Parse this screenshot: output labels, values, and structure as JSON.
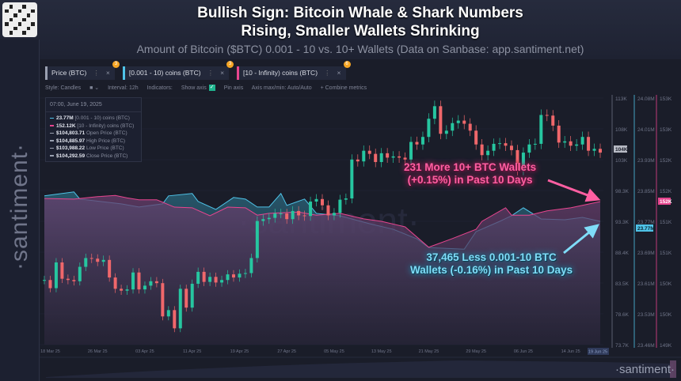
{
  "header": {
    "title_line1": "Bullish Sign: Bitcoin Whale & Shark Numbers",
    "title_line2": "Rising, Smaller Wallets Shrinking",
    "subtitle": "Amount of Bitcoin ($BTC) 0.001 - 10 vs. 10+ Wallets (Data on Sanbase: app.santiment.net)"
  },
  "brand": {
    "sidebar_logo": "·santiment·",
    "watermark": "·santiment·",
    "footer_logo": "·santiment·"
  },
  "tabs": [
    {
      "label": "Price (BTC)",
      "badge": "3",
      "color": "#9aa0b0"
    },
    {
      "label": "[0.001 - 10) coins (BTC)",
      "badge": "3",
      "color": "#4fc3e8"
    },
    {
      "label": "[10 - Infinity) coins (BTC)",
      "badge": "6",
      "color": "#e8458f"
    }
  ],
  "settings": {
    "style": "Style: Candles",
    "interval": "Interval: 12h",
    "indicators": "Indicators:",
    "show_axis": "Show axis",
    "pin_axis": "Pin axis",
    "axis_maxmin": "Axis max/min: Auto/Auto",
    "combine": "+ Combine metrics"
  },
  "legend": {
    "datetime": "07:00, June 19, 2025",
    "rows": [
      {
        "value": "23.77M",
        "label": "[0.001 - 10) coins (BTC)",
        "color": "#4fc3e8"
      },
      {
        "value": "152.12K",
        "label": "[10 - Infinity) coins (BTC)",
        "color": "#e8458f"
      },
      {
        "value": "$104,803.71",
        "label": "Open Price (BTC)",
        "color": "#9aa0b0"
      },
      {
        "value": "$104,885.97",
        "label": "High Price (BTC)",
        "color": "#9aa0b0"
      },
      {
        "value": "$103,988.22",
        "label": "Low Price (BTC)",
        "color": "#9aa0b0"
      },
      {
        "value": "$104,292.59",
        "label": "Close Price (BTC)",
        "color": "#9aa0b0"
      }
    ]
  },
  "annotations": {
    "pink_line1": "231 More 10+ BTC Wallets",
    "pink_line2": "(+0.15%) in Past 10 Days",
    "blue_line1": "37,465 Less 0.001-10 BTC",
    "blue_line2": "Wallets (-0.16%) in Past 10 Days"
  },
  "chart_data": {
    "type": "candlestick+area",
    "x_ticks": [
      "18 Mar 25",
      "26 Mar 25",
      "03 Apr 25",
      "11 Apr 25",
      "19 Apr 25",
      "27 Apr 25",
      "05 May 25",
      "13 May 25",
      "21 May 25",
      "29 May 25",
      "06 Jun 25",
      "14 Jun 25"
    ],
    "x_current_label": "19 Jun 25",
    "xlim": [
      "2025-03-17",
      "2025-06-19"
    ],
    "axes": [
      {
        "name": "Price (BTC)",
        "unit": "K USD",
        "ylim": [
          73.7,
          113
        ],
        "tick_labels": [
          "113K",
          "108K",
          "103K",
          "98.3K",
          "93.3K",
          "88.4K",
          "83.5K",
          "78.6K",
          "73.7K"
        ],
        "current": "104K",
        "color": "#b0b4c0"
      },
      {
        "name": "[0.001 - 10) coins (BTC)",
        "unit": "M BTC",
        "ylim": [
          23.46,
          24.08
        ],
        "tick_labels": [
          "24.08M",
          "24.01M",
          "23.93M",
          "23.85M",
          "23.77M",
          "23.69M",
          "23.61M",
          "23.53M",
          "23.46M"
        ],
        "current": "23.77M",
        "color": "#4fc3e8"
      },
      {
        "name": "[10 - Infinity) coins (BTC)",
        "unit": "K BTC",
        "ylim": [
          149.8,
          153.8
        ],
        "tick_labels": [
          "153K",
          "153K",
          "152K",
          "152K",
          "151K",
          "151K",
          "150K",
          "150K",
          "149K"
        ],
        "current": "152K",
        "color": "#e8458f"
      }
    ],
    "price_close": [
      [
        "2025-03-17",
        84.0
      ],
      [
        "2025-03-18",
        82.7
      ],
      [
        "2025-03-19",
        86.8
      ],
      [
        "2025-03-20",
        84.2
      ],
      [
        "2025-03-21",
        84.0
      ],
      [
        "2025-03-22",
        83.8
      ],
      [
        "2025-03-23",
        86.1
      ],
      [
        "2025-03-24",
        87.5
      ],
      [
        "2025-03-25",
        87.4
      ],
      [
        "2025-03-26",
        86.9
      ],
      [
        "2025-03-27",
        87.2
      ],
      [
        "2025-03-28",
        84.4
      ],
      [
        "2025-03-29",
        82.6
      ],
      [
        "2025-03-30",
        82.3
      ],
      [
        "2025-03-31",
        82.5
      ],
      [
        "2025-04-01",
        85.2
      ],
      [
        "2025-04-02",
        82.5
      ],
      [
        "2025-04-03",
        83.1
      ],
      [
        "2025-04-04",
        83.8
      ],
      [
        "2025-04-05",
        83.5
      ],
      [
        "2025-04-06",
        78.2
      ],
      [
        "2025-04-07",
        79.2
      ],
      [
        "2025-04-08",
        76.3
      ],
      [
        "2025-04-09",
        82.6
      ],
      [
        "2025-04-10",
        79.6
      ],
      [
        "2025-04-11",
        83.4
      ],
      [
        "2025-04-12",
        85.3
      ],
      [
        "2025-04-13",
        83.7
      ],
      [
        "2025-04-14",
        84.5
      ],
      [
        "2025-04-15",
        83.6
      ],
      [
        "2025-04-16",
        84.0
      ],
      [
        "2025-04-17",
        84.9
      ],
      [
        "2025-04-18",
        84.4
      ],
      [
        "2025-04-19",
        85.0
      ],
      [
        "2025-04-20",
        85.1
      ],
      [
        "2025-04-21",
        87.5
      ],
      [
        "2025-04-22",
        93.4
      ],
      [
        "2025-04-23",
        93.7
      ],
      [
        "2025-04-24",
        93.9
      ],
      [
        "2025-04-25",
        94.6
      ],
      [
        "2025-04-26",
        94.6
      ],
      [
        "2025-04-27",
        93.7
      ],
      [
        "2025-04-28",
        95.0
      ],
      [
        "2025-04-29",
        94.3
      ],
      [
        "2025-04-30",
        94.2
      ],
      [
        "2025-05-01",
        96.5
      ],
      [
        "2025-05-02",
        96.9
      ],
      [
        "2025-05-03",
        95.9
      ],
      [
        "2025-05-04",
        94.3
      ],
      [
        "2025-05-05",
        94.7
      ],
      [
        "2025-05-06",
        96.8
      ],
      [
        "2025-05-07",
        97.0
      ],
      [
        "2025-05-08",
        103.2
      ],
      [
        "2025-05-09",
        102.9
      ],
      [
        "2025-05-10",
        104.6
      ],
      [
        "2025-05-11",
        104.1
      ],
      [
        "2025-05-12",
        102.8
      ],
      [
        "2025-05-13",
        104.2
      ],
      [
        "2025-05-14",
        103.5
      ],
      [
        "2025-05-15",
        103.7
      ],
      [
        "2025-05-16",
        103.5
      ],
      [
        "2025-05-17",
        103.2
      ],
      [
        "2025-05-18",
        106.0
      ],
      [
        "2025-05-19",
        105.6
      ],
      [
        "2025-05-20",
        106.8
      ],
      [
        "2025-05-21",
        109.7
      ],
      [
        "2025-05-22",
        111.7
      ],
      [
        "2025-05-23",
        107.3
      ],
      [
        "2025-05-24",
        107.8
      ],
      [
        "2025-05-25",
        109.0
      ],
      [
        "2025-05-26",
        109.4
      ],
      [
        "2025-05-27",
        108.9
      ],
      [
        "2025-05-28",
        107.8
      ],
      [
        "2025-05-29",
        105.6
      ],
      [
        "2025-05-30",
        103.9
      ],
      [
        "2025-05-31",
        104.6
      ],
      [
        "2025-06-01",
        105.7
      ],
      [
        "2025-06-02",
        105.8
      ],
      [
        "2025-06-03",
        105.4
      ],
      [
        "2025-06-04",
        104.7
      ],
      [
        "2025-06-05",
        101.5
      ],
      [
        "2025-06-06",
        104.3
      ],
      [
        "2025-06-07",
        105.6
      ],
      [
        "2025-06-08",
        105.7
      ],
      [
        "2025-06-09",
        110.3
      ],
      [
        "2025-06-10",
        110.2
      ],
      [
        "2025-06-11",
        108.6
      ],
      [
        "2025-06-12",
        105.9
      ],
      [
        "2025-06-13",
        106.1
      ],
      [
        "2025-06-14",
        105.4
      ],
      [
        "2025-06-15",
        105.6
      ],
      [
        "2025-06-16",
        106.8
      ],
      [
        "2025-06-17",
        104.6
      ],
      [
        "2025-06-18",
        104.9
      ],
      [
        "2025-06-19",
        104.3
      ]
    ],
    "small_wallets": [
      [
        "2025-03-17",
        23.834
      ],
      [
        "2025-03-22",
        23.844
      ],
      [
        "2025-03-23",
        23.826
      ],
      [
        "2025-03-30",
        23.814
      ],
      [
        "2025-04-02",
        23.806
      ],
      [
        "2025-04-06",
        23.814
      ],
      [
        "2025-04-07",
        23.834
      ],
      [
        "2025-04-11",
        23.84
      ],
      [
        "2025-04-12",
        23.82
      ],
      [
        "2025-04-15",
        23.8
      ],
      [
        "2025-04-18",
        23.83
      ],
      [
        "2025-04-20",
        23.826
      ],
      [
        "2025-04-22",
        23.806
      ],
      [
        "2025-04-24",
        23.806
      ],
      [
        "2025-04-26",
        23.84
      ],
      [
        "2025-04-27",
        23.81
      ],
      [
        "2025-04-30",
        23.826
      ],
      [
        "2025-05-02",
        23.79
      ],
      [
        "2025-05-06",
        23.784
      ],
      [
        "2025-05-11",
        23.764
      ],
      [
        "2025-05-15",
        23.75
      ],
      [
        "2025-05-19",
        23.726
      ],
      [
        "2025-05-21",
        23.704
      ],
      [
        "2025-05-27",
        23.7
      ],
      [
        "2025-05-29",
        23.744
      ],
      [
        "2025-06-02",
        23.77
      ],
      [
        "2025-06-04",
        23.784
      ],
      [
        "2025-06-06",
        23.804
      ],
      [
        "2025-06-09",
        23.776
      ],
      [
        "2025-06-13",
        23.774
      ],
      [
        "2025-06-16",
        23.78
      ],
      [
        "2025-06-19",
        23.77
      ]
    ],
    "large_wallets": [
      [
        "2025-03-17",
        152.17
      ],
      [
        "2025-03-22",
        152.16
      ],
      [
        "2025-03-26",
        152.2
      ],
      [
        "2025-03-29",
        152.22
      ],
      [
        "2025-03-31",
        152.18
      ],
      [
        "2025-04-02",
        152.15
      ],
      [
        "2025-04-05",
        152.15
      ],
      [
        "2025-04-08",
        152.03
      ],
      [
        "2025-04-11",
        152.02
      ],
      [
        "2025-04-14",
        151.89
      ],
      [
        "2025-04-17",
        152.03
      ],
      [
        "2025-04-20",
        152.02
      ],
      [
        "2025-04-22",
        151.9
      ],
      [
        "2025-04-24",
        151.93
      ],
      [
        "2025-04-29",
        151.95
      ],
      [
        "2025-05-02",
        151.9
      ],
      [
        "2025-05-06",
        151.93
      ],
      [
        "2025-05-10",
        151.84
      ],
      [
        "2025-05-13",
        151.8
      ],
      [
        "2025-05-17",
        151.71
      ],
      [
        "2025-05-21",
        151.38
      ],
      [
        "2025-05-25",
        151.52
      ],
      [
        "2025-05-29",
        151.67
      ],
      [
        "2025-05-30",
        151.8
      ],
      [
        "2025-06-03",
        152.02
      ],
      [
        "2025-06-04",
        151.9
      ],
      [
        "2025-06-07",
        151.9
      ],
      [
        "2025-06-10",
        151.97
      ],
      [
        "2025-06-14",
        152.02
      ],
      [
        "2025-06-16",
        152.06
      ],
      [
        "2025-06-19",
        152.12
      ]
    ],
    "colors": {
      "up": "#26c6a0",
      "down": "#f0676b",
      "small": "#4fc3e8",
      "large": "#e8458f"
    }
  }
}
